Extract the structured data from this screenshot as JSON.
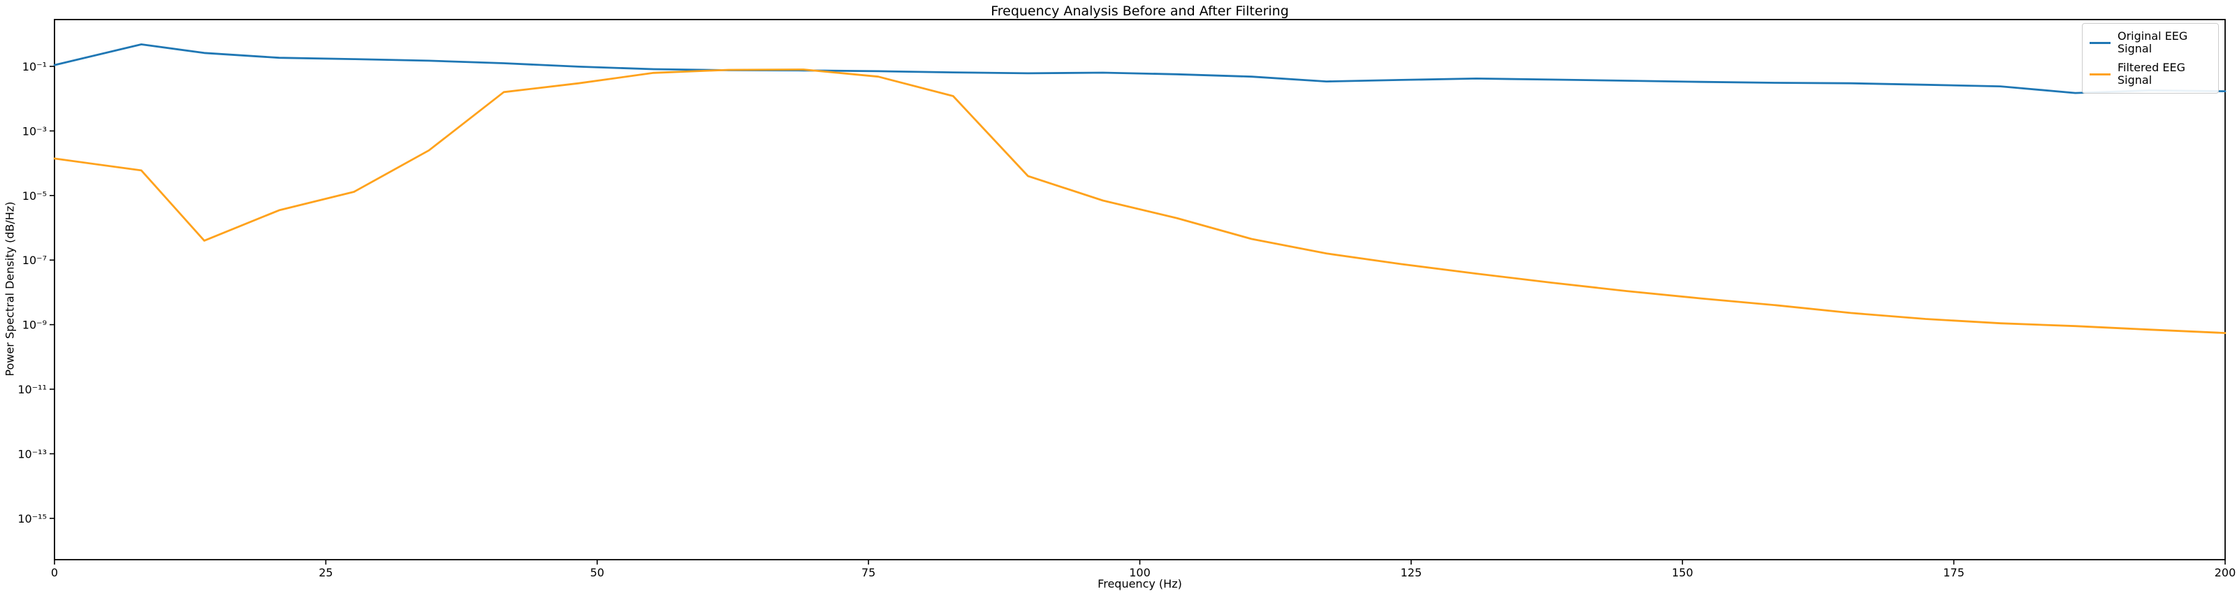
{
  "figure": {
    "background": "#ffffff"
  },
  "chart_data": {
    "type": "line",
    "title": "Frequency Analysis Before and After Filtering",
    "xlabel": "Frequency (Hz)",
    "ylabel": "Power Spectral Density (dB/Hz)",
    "grid": false,
    "x_scale": "linear",
    "y_scale": "log",
    "xlim": [
      0,
      200
    ],
    "ylim_log10": [
      -16.28,
      0.45
    ],
    "x_ticks": [
      0,
      25,
      50,
      75,
      100,
      125,
      150,
      175,
      200
    ],
    "x_tick_labels": [
      "0",
      "25",
      "50",
      "75",
      "100",
      "125",
      "150",
      "175",
      "200"
    ],
    "y_tick_exponents": [
      -1,
      -3,
      -5,
      -7,
      -9,
      -11,
      -13,
      -15
    ],
    "y_tick_labels": [
      "10⁻¹",
      "10⁻³",
      "10⁻⁵",
      "10⁻⁷",
      "10⁻⁹",
      "10⁻¹¹",
      "10⁻¹³",
      "10⁻¹⁵"
    ],
    "legend": {
      "position": "upper right",
      "entries": [
        "Original EEG Signal",
        "Filtered EEG Signal"
      ]
    },
    "series": [
      {
        "name": "Original EEG Signal",
        "color": "#1f77b4",
        "points": [
          [
            0,
            0.11
          ],
          [
            8,
            0.48
          ],
          [
            13.8,
            0.26
          ],
          [
            20.7,
            0.185
          ],
          [
            27.6,
            0.168
          ],
          [
            34.5,
            0.15
          ],
          [
            41.4,
            0.125
          ],
          [
            48.3,
            0.098
          ],
          [
            55.2,
            0.082
          ],
          [
            62.1,
            0.076
          ],
          [
            69.0,
            0.075
          ],
          [
            75.9,
            0.071
          ],
          [
            82.8,
            0.065
          ],
          [
            89.7,
            0.061
          ],
          [
            96.6,
            0.064
          ],
          [
            103.4,
            0.057
          ],
          [
            110.3,
            0.048
          ],
          [
            117.2,
            0.034
          ],
          [
            124.1,
            0.038
          ],
          [
            131.0,
            0.042
          ],
          [
            137.9,
            0.039
          ],
          [
            144.8,
            0.036
          ],
          [
            151.7,
            0.033
          ],
          [
            158.6,
            0.031
          ],
          [
            165.5,
            0.03
          ],
          [
            172.4,
            0.027
          ],
          [
            179.3,
            0.024
          ],
          [
            186.2,
            0.015
          ],
          [
            193.1,
            0.018
          ],
          [
            200,
            0.017
          ]
        ]
      },
      {
        "name": "Filtered EEG Signal",
        "color": "#ffa21c",
        "points": [
          [
            0,
            0.00014
          ],
          [
            8,
            6e-05
          ],
          [
            13.8,
            4e-07
          ],
          [
            20.7,
            3.5e-06
          ],
          [
            27.6,
            1.3e-05
          ],
          [
            34.5,
            0.00025
          ],
          [
            41.4,
            0.016
          ],
          [
            48.3,
            0.03
          ],
          [
            55.2,
            0.063
          ],
          [
            62.1,
            0.078
          ],
          [
            69.0,
            0.08
          ],
          [
            75.9,
            0.048
          ],
          [
            82.8,
            0.012
          ],
          [
            89.7,
            4e-05
          ],
          [
            96.6,
            7e-06
          ],
          [
            103.4,
            2e-06
          ],
          [
            110.3,
            4.5e-07
          ],
          [
            117.2,
            1.6e-07
          ],
          [
            124.1,
            7.5e-08
          ],
          [
            131.0,
            3.8e-08
          ],
          [
            137.9,
            2e-08
          ],
          [
            144.8,
            1.1e-08
          ],
          [
            151.7,
            6.5e-09
          ],
          [
            158.6,
            4e-09
          ],
          [
            165.5,
            2.3e-09
          ],
          [
            172.4,
            1.5e-09
          ],
          [
            179.3,
            1.1e-09
          ],
          [
            186.2,
            9e-10
          ],
          [
            193.1,
            7e-10
          ],
          [
            200,
            5.5e-10
          ]
        ]
      }
    ]
  }
}
